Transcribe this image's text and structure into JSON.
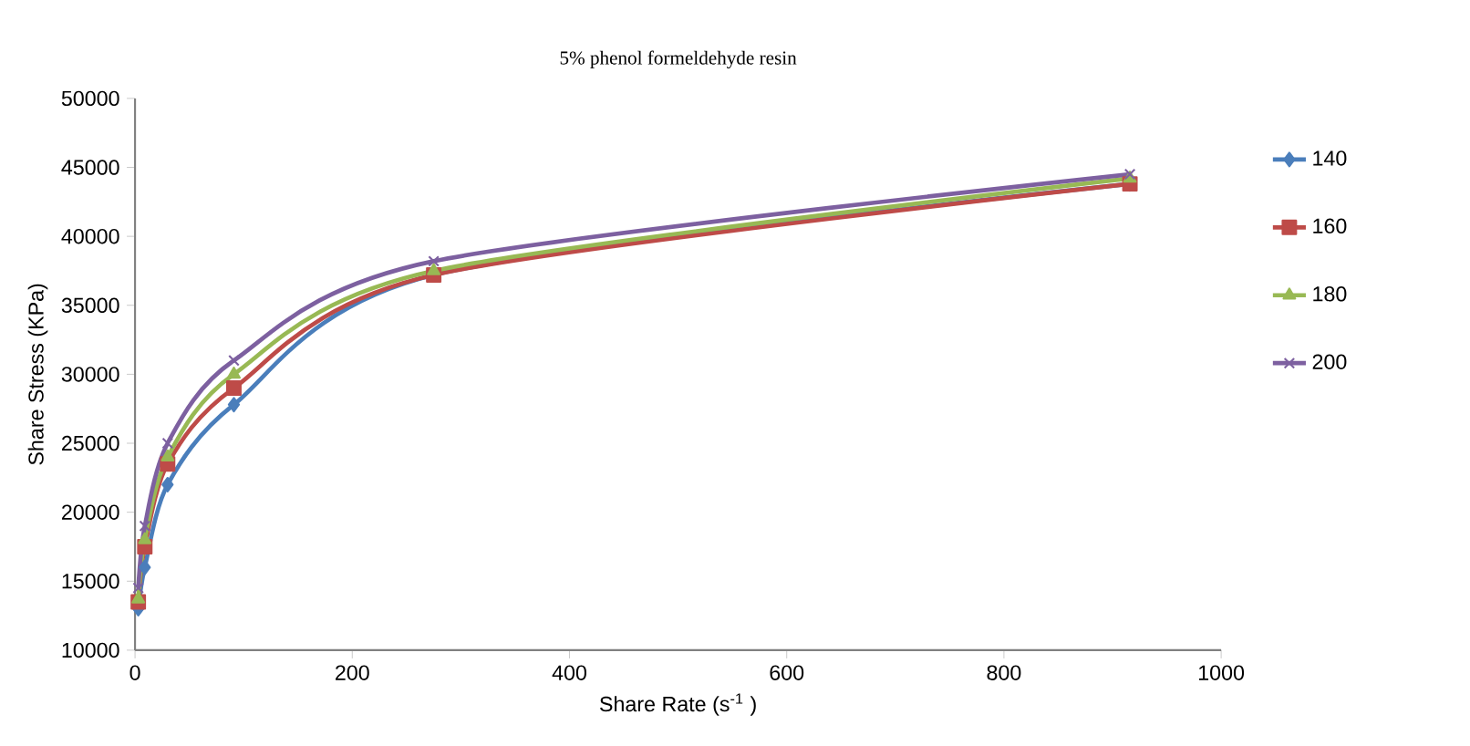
{
  "chart_data": {
    "type": "line",
    "title": "5% phenol formeldehyde resin",
    "xlabel": "Share Rate (s$^{-1}$ )",
    "ylabel": "Share Stress (KPa)",
    "x": [
      3,
      9,
      30,
      91,
      275,
      916
    ],
    "series": [
      {
        "name": "140",
        "color": "#4a7ebb",
        "marker": "diamond",
        "values": [
          13000,
          16000,
          22000,
          27800,
          37200,
          43800
        ]
      },
      {
        "name": "160",
        "color": "#be4b48",
        "marker": "square",
        "values": [
          13500,
          17500,
          23500,
          29000,
          37200,
          43800
        ]
      },
      {
        "name": "180",
        "color": "#98b954",
        "marker": "triangle",
        "values": [
          13700,
          18000,
          24000,
          30000,
          37500,
          44200
        ]
      },
      {
        "name": "200",
        "color": "#7d60a0",
        "marker": "cross",
        "values": [
          14500,
          19000,
          25000,
          31000,
          38200,
          44500
        ]
      }
    ],
    "xlim": [
      0,
      1000
    ],
    "xticks": [
      0,
      200,
      400,
      600,
      800,
      1000
    ],
    "ylim": [
      10000,
      50000
    ],
    "yticks": [
      10000,
      15000,
      20000,
      25000,
      30000,
      35000,
      40000,
      45000,
      50000
    ],
    "grid": false,
    "legend": "right"
  }
}
